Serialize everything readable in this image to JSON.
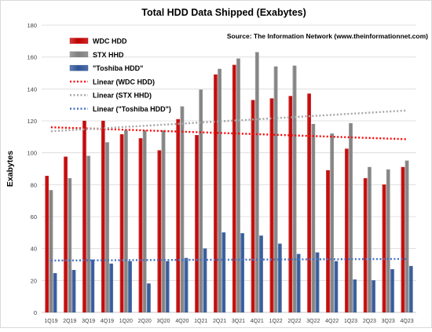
{
  "chart_data": {
    "type": "bar",
    "title": "Total HDD Data Shipped (Exabytes)",
    "source": "Source: The Information Network (www.theinformationnet.com)",
    "xlabel": "",
    "ylabel": "Exabytes",
    "ylim": [
      0,
      180
    ],
    "yticks": [
      "0",
      "20",
      "40",
      "60",
      "80",
      "100",
      "120",
      "140",
      "160",
      "180"
    ],
    "grid": true,
    "legend_position": "top-left",
    "categories": [
      "1Q19",
      "2Q19",
      "3Q19",
      "4Q19",
      "1Q20",
      "2Q20",
      "3Q20",
      "4Q20",
      "1Q21",
      "2Q21",
      "3Q21",
      "4Q21",
      "1Q22",
      "2Q22",
      "3Q22",
      "4Q22",
      "1Q23",
      "2Q23",
      "3Q23",
      "4Q23"
    ],
    "series": [
      {
        "name": "WDC HDD",
        "color": "#c00000",
        "values": [
          85.5,
          97.5,
          120,
          120,
          111.5,
          109,
          101.5,
          121,
          111,
          149,
          155,
          133,
          134,
          135.5,
          137,
          89,
          102.5,
          84,
          80,
          91
        ]
      },
      {
        "name": "STX HHD",
        "color": "#7f7f7f",
        "values": [
          76.5,
          84,
          98,
          106.5,
          114,
          114,
          114,
          129,
          139.5,
          152.5,
          159,
          163,
          154,
          154.5,
          118,
          112,
          118.5,
          91,
          89.5,
          95
        ]
      },
      {
        "name": "\"Toshiba HDD\"",
        "color": "#2f5597",
        "values": [
          24.5,
          26.5,
          33,
          30.5,
          32,
          18,
          32,
          34,
          40,
          50,
          49.5,
          48,
          43,
          36.5,
          37.5,
          32,
          20.5,
          20,
          27,
          29
        ]
      }
    ],
    "trendlines": [
      {
        "name": "Linear (WDC HDD)",
        "color": "#ff0000",
        "start": 116,
        "end": 108.5
      },
      {
        "name": "Linear (STX HHD)",
        "color": "#a6a6a6",
        "start": 113.5,
        "end": 126.5
      },
      {
        "name": "Linear (\"Toshiba HDD\")",
        "color": "#4472c4",
        "start": 32.5,
        "end": 33.5
      }
    ]
  }
}
